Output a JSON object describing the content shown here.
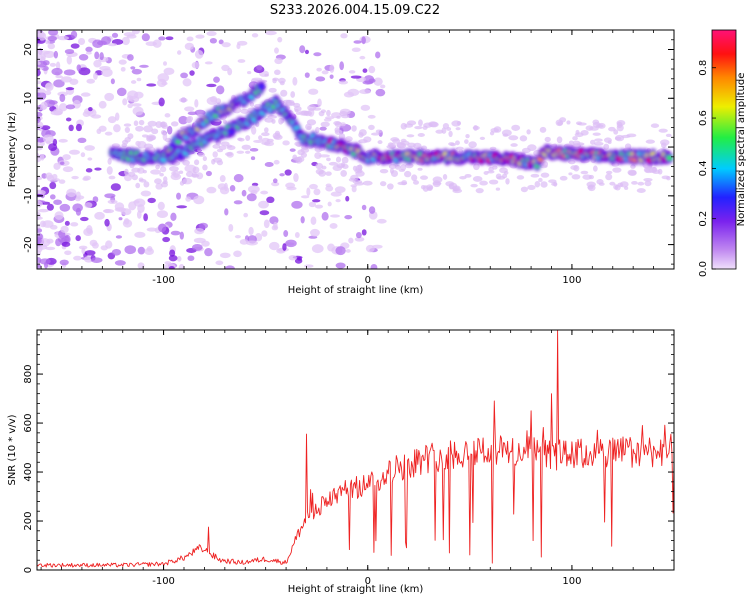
{
  "title": "S233.2026.004.15.09.C22",
  "chart_data": [
    {
      "type": "heatmap",
      "name": "spectrogram",
      "xlabel": "Height of straight line (km)",
      "ylabel": "Frequency (Hz)",
      "xlim": [
        -162,
        150
      ],
      "ylim": [
        -25,
        24
      ],
      "xticks": [
        -100,
        0,
        100
      ],
      "yticks": [
        -20,
        -10,
        0,
        10,
        20
      ],
      "colorbar": {
        "label": "Normalized spectral amplitude",
        "range": [
          0.0,
          0.95
        ],
        "ticks": [
          0.0,
          0.2,
          0.4,
          0.6,
          0.8
        ],
        "tick_labels": [
          "0.0",
          "0.2",
          "0.4",
          "0.6",
          "0.8"
        ],
        "colors": [
          "#e8c8f8",
          "#9933ff",
          "#3322ff",
          "#00ddee",
          "#22ee55",
          "#eeee00",
          "#ff8800",
          "#ff0000",
          "#ff1177"
        ]
      },
      "main_trace": [
        {
          "x": -125,
          "y": -1.5
        },
        {
          "x": -110,
          "y": -2
        },
        {
          "x": -95,
          "y": -2
        },
        {
          "x": -82,
          "y": 1
        },
        {
          "x": -70,
          "y": 3
        },
        {
          "x": -58,
          "y": 5.5
        },
        {
          "x": -45,
          "y": 9
        },
        {
          "x": -38,
          "y": 6
        },
        {
          "x": -32,
          "y": 2
        },
        {
          "x": -20,
          "y": 1
        },
        {
          "x": -10,
          "y": 0
        },
        {
          "x": 0,
          "y": -2
        },
        {
          "x": 20,
          "y": -2
        },
        {
          "x": 50,
          "y": -2
        },
        {
          "x": 70,
          "y": -2.5
        },
        {
          "x": 83,
          "y": -3.5
        },
        {
          "x": 86,
          "y": -1
        },
        {
          "x": 100,
          "y": -1.5
        },
        {
          "x": 125,
          "y": -2
        },
        {
          "x": 148,
          "y": -2
        }
      ],
      "upper_branch": [
        {
          "x": -100,
          "y": -2
        },
        {
          "x": -92,
          "y": 2
        },
        {
          "x": -85,
          "y": 3.5
        },
        {
          "x": -78,
          "y": 6
        },
        {
          "x": -72,
          "y": 7.5
        },
        {
          "x": -60,
          "y": 9.5
        },
        {
          "x": -52,
          "y": 12.5
        }
      ]
    },
    {
      "type": "line",
      "name": "snr",
      "xlabel": "Height of straight line (km)",
      "ylabel": "SNR (10 * v/v)",
      "xlim": [
        -162,
        150
      ],
      "ylim": [
        0,
        980
      ],
      "xticks": [
        -100,
        0,
        100
      ],
      "yticks": [
        0,
        200,
        400,
        600,
        800
      ],
      "color": "#ee2222",
      "baseline_profile": [
        {
          "x": -162,
          "y": 20
        },
        {
          "x": -120,
          "y": 20
        },
        {
          "x": -100,
          "y": 25
        },
        {
          "x": -90,
          "y": 50
        },
        {
          "x": -82,
          "y": 90
        },
        {
          "x": -72,
          "y": 40
        },
        {
          "x": -62,
          "y": 30
        },
        {
          "x": -50,
          "y": 45
        },
        {
          "x": -40,
          "y": 30
        },
        {
          "x": -34,
          "y": 150
        },
        {
          "x": -28,
          "y": 230
        },
        {
          "x": -15,
          "y": 310
        },
        {
          "x": 0,
          "y": 350
        },
        {
          "x": 15,
          "y": 420
        },
        {
          "x": 30,
          "y": 460
        },
        {
          "x": 55,
          "y": 490
        },
        {
          "x": 80,
          "y": 480
        },
        {
          "x": 92,
          "y": 470
        },
        {
          "x": 100,
          "y": 470
        },
        {
          "x": 120,
          "y": 480
        },
        {
          "x": 150,
          "y": 490
        }
      ],
      "peaks": [
        {
          "x": -78,
          "y": 175
        },
        {
          "x": -30,
          "y": 555
        },
        {
          "x": 62,
          "y": 690
        },
        {
          "x": 80,
          "y": 650
        },
        {
          "x": 90,
          "y": 720
        },
        {
          "x": 93,
          "y": 980
        }
      ]
    }
  ]
}
